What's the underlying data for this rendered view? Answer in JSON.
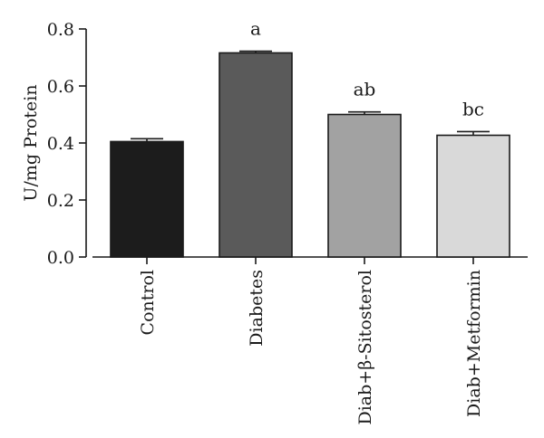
{
  "chart_data": {
    "type": "bar",
    "title": "",
    "xlabel": "",
    "ylabel": "U/mg Protein",
    "ylim": [
      0,
      0.8
    ],
    "yticks": [
      "0.0",
      "0.2",
      "0.4",
      "0.6",
      "0.8"
    ],
    "grid": false,
    "legend": "none",
    "categories": [
      "Control",
      "Diabetes",
      "Diab+β-Sitosterol",
      "Diab+Metformin"
    ],
    "values": [
      0.405,
      0.716,
      0.5,
      0.427
    ],
    "errors": [
      0.01,
      0.006,
      0.009,
      0.013
    ],
    "significance": [
      "",
      "a",
      "ab",
      "bc"
    ],
    "colors": [
      "#1c1c1c",
      "#5a5a5a",
      "#a2a2a2",
      "#d9d9d9"
    ]
  }
}
